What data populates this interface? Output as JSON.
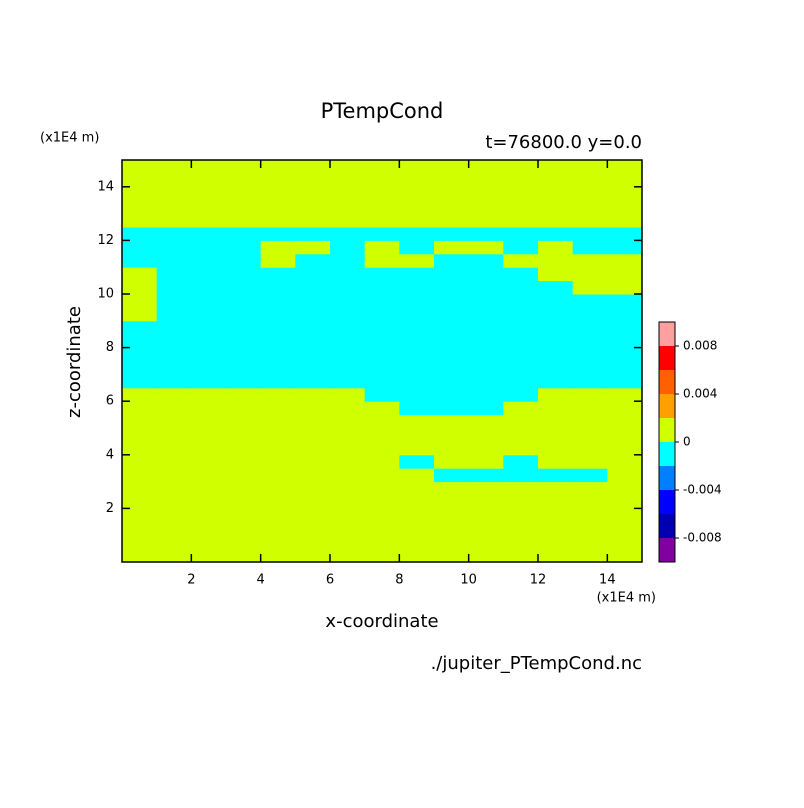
{
  "chart_data": {
    "type": "heatmap",
    "title": "PTempCond",
    "subtitle": "t=76800.0 y=0.0",
    "xlabel": "x-coordinate",
    "ylabel": "z-coordinate",
    "x_unit": "(x1E4 m)",
    "y_unit": "(x1E4 m)",
    "source": "./jupiter_PTempCond.nc",
    "xlim": [
      0,
      15
    ],
    "ylim": [
      0,
      15
    ],
    "xticks": [
      2,
      4,
      6,
      8,
      10,
      12,
      14
    ],
    "yticks": [
      2,
      4,
      6,
      8,
      10,
      12,
      14
    ],
    "x": [
      0.5,
      1.5,
      2.5,
      3.5,
      4.5,
      5.5,
      6.5,
      7.5,
      8.5,
      9.5,
      10.5,
      11.5,
      12.5,
      13.5,
      14.5
    ],
    "y": [
      0.25,
      0.75,
      1.25,
      1.75,
      2.25,
      2.75,
      3.25,
      3.75,
      4.25,
      4.75,
      5.25,
      5.75,
      6.25,
      6.75,
      7.25,
      7.75,
      8.25,
      8.75,
      9.25,
      9.75,
      10.25,
      10.75,
      11.25,
      11.75,
      12.25,
      12.75,
      13.25,
      13.75,
      14.25,
      14.75
    ],
    "z": [
      [
        0.001,
        0.001,
        0.001,
        0.001,
        0.001,
        0.001,
        0.001,
        0.001,
        0.001,
        0.001,
        0.001,
        0.001,
        0.001,
        0.001,
        0.001
      ],
      [
        0.001,
        0.001,
        0.001,
        0.001,
        0.001,
        0.001,
        0.001,
        0.001,
        0.001,
        0.001,
        0.001,
        0.001,
        0.001,
        0.001,
        0.001
      ],
      [
        0.001,
        0.001,
        0.001,
        0.001,
        0.001,
        0.001,
        0.001,
        0.001,
        0.001,
        0.001,
        0.001,
        0.001,
        0.001,
        0.001,
        0.001
      ],
      [
        0.001,
        0.001,
        0.001,
        0.001,
        0.001,
        0.001,
        0.001,
        0.001,
        0.001,
        0.001,
        0.001,
        0.001,
        0.001,
        0.001,
        0.001
      ],
      [
        0.001,
        0.001,
        0.001,
        0.001,
        0.001,
        0.001,
        0.001,
        0.001,
        0.001,
        0.001,
        0.001,
        0.001,
        0.001,
        0.001,
        0.001
      ],
      [
        0.001,
        0.001,
        0.001,
        0.001,
        0.001,
        0.001,
        0.001,
        0.001,
        0.001,
        0.001,
        0.001,
        0.001,
        0.001,
        0.001,
        0.001
      ],
      [
        0.001,
        0.001,
        0.001,
        0.001,
        0.001,
        0.001,
        0.001,
        0.001,
        0.001,
        -0.001,
        -0.001,
        -0.001,
        -0.001,
        -0.001,
        0.001
      ],
      [
        0.001,
        0.001,
        0.001,
        0.001,
        0.001,
        0.001,
        0.001,
        0.001,
        -0.001,
        0.001,
        0.001,
        -0.001,
        0.001,
        0.001,
        0.001
      ],
      [
        0.001,
        0.001,
        0.001,
        0.001,
        0.001,
        0.001,
        0.001,
        0.001,
        0.001,
        0.001,
        0.001,
        0.001,
        0.001,
        0.001,
        0.001
      ],
      [
        0.001,
        0.001,
        0.001,
        0.001,
        0.001,
        0.001,
        0.001,
        0.001,
        0.001,
        0.001,
        0.001,
        0.001,
        0.001,
        0.001,
        0.001
      ],
      [
        0.001,
        0.001,
        0.001,
        0.001,
        0.001,
        0.001,
        0.001,
        0.001,
        0.001,
        0.001,
        0.001,
        0.001,
        0.001,
        0.001,
        0.001
      ],
      [
        0.001,
        0.001,
        0.001,
        0.001,
        0.001,
        0.001,
        0.001,
        0.001,
        -0.001,
        -0.001,
        -0.001,
        0.001,
        0.001,
        0.001,
        0.001
      ],
      [
        0.001,
        0.001,
        0.001,
        0.001,
        0.001,
        0.001,
        0.001,
        -0.001,
        -0.001,
        -0.001,
        -0.001,
        -0.001,
        0.001,
        0.001,
        0.001
      ],
      [
        -0.001,
        -0.001,
        -0.001,
        -0.001,
        -0.001,
        -0.001,
        -0.001,
        -0.001,
        -0.001,
        -0.001,
        -0.001,
        -0.001,
        -0.001,
        -0.001,
        -0.001
      ],
      [
        -0.001,
        -0.001,
        -0.001,
        -0.001,
        -0.001,
        -0.001,
        -0.001,
        -0.001,
        -0.001,
        -0.001,
        -0.001,
        -0.001,
        -0.001,
        -0.001,
        -0.001
      ],
      [
        -0.001,
        -0.001,
        -0.001,
        -0.001,
        -0.001,
        -0.001,
        -0.001,
        -0.001,
        -0.001,
        -0.001,
        -0.001,
        -0.001,
        -0.001,
        -0.001,
        -0.001
      ],
      [
        -0.001,
        -0.001,
        -0.001,
        -0.001,
        -0.001,
        -0.001,
        -0.001,
        -0.001,
        -0.001,
        -0.001,
        -0.001,
        -0.001,
        -0.001,
        -0.001,
        -0.001
      ],
      [
        -0.001,
        -0.001,
        -0.001,
        -0.001,
        -0.001,
        -0.001,
        -0.001,
        -0.001,
        -0.001,
        -0.001,
        -0.001,
        -0.001,
        -0.001,
        -0.001,
        -0.001
      ],
      [
        0.001,
        -0.001,
        -0.001,
        -0.001,
        -0.001,
        -0.001,
        -0.001,
        -0.001,
        -0.001,
        -0.001,
        -0.001,
        -0.001,
        -0.001,
        -0.001,
        -0.001
      ],
      [
        0.001,
        -0.001,
        -0.001,
        -0.001,
        -0.001,
        -0.001,
        -0.001,
        -0.001,
        -0.001,
        -0.001,
        -0.001,
        -0.001,
        -0.001,
        -0.001,
        -0.001
      ],
      [
        0.001,
        -0.001,
        -0.001,
        -0.001,
        -0.001,
        -0.001,
        -0.001,
        -0.001,
        -0.001,
        -0.001,
        -0.001,
        -0.001,
        -0.001,
        0.001,
        0.001
      ],
      [
        0.001,
        -0.001,
        -0.001,
        -0.001,
        -0.001,
        -0.001,
        -0.001,
        -0.001,
        -0.001,
        -0.001,
        -0.001,
        -0.001,
        0.001,
        0.001,
        0.001
      ],
      [
        -0.001,
        -0.001,
        -0.001,
        -0.001,
        0.001,
        -0.001,
        -0.001,
        0.001,
        0.001,
        -0.001,
        -0.001,
        0.001,
        0.001,
        0.001,
        0.001
      ],
      [
        -0.001,
        -0.001,
        -0.001,
        -0.001,
        0.001,
        0.001,
        -0.001,
        0.001,
        -0.001,
        0.001,
        0.001,
        -0.001,
        0.001,
        -0.001,
        -0.001
      ],
      [
        -0.001,
        -0.001,
        -0.001,
        -0.001,
        -0.001,
        -0.001,
        -0.001,
        -0.001,
        -0.001,
        -0.001,
        -0.001,
        -0.001,
        -0.001,
        -0.001,
        -0.001
      ],
      [
        0.001,
        0.001,
        0.001,
        0.001,
        0.001,
        0.001,
        0.001,
        0.001,
        0.001,
        0.001,
        0.001,
        0.001,
        0.001,
        0.001,
        0.001
      ],
      [
        0.001,
        0.001,
        0.001,
        0.001,
        0.001,
        0.001,
        0.001,
        0.001,
        0.001,
        0.001,
        0.001,
        0.001,
        0.001,
        0.001,
        0.001
      ],
      [
        0.001,
        0.001,
        0.001,
        0.001,
        0.001,
        0.001,
        0.001,
        0.001,
        0.001,
        0.001,
        0.001,
        0.001,
        0.001,
        0.001,
        0.001
      ],
      [
        0.001,
        0.001,
        0.001,
        0.001,
        0.001,
        0.001,
        0.001,
        0.001,
        0.001,
        0.001,
        0.001,
        0.001,
        0.001,
        0.001,
        0.001
      ],
      [
        0.001,
        0.001,
        0.001,
        0.001,
        0.001,
        0.001,
        0.001,
        0.001,
        0.001,
        0.001,
        0.001,
        0.001,
        0.001,
        0.001,
        0.001
      ]
    ],
    "levels": [
      -0.01,
      -0.008,
      -0.006,
      -0.004,
      -0.002,
      0,
      0.002,
      0.004,
      0.006,
      0.008,
      0.01
    ],
    "colors": [
      "#8000a0",
      "#0000b0",
      "#0000ff",
      "#0080ff",
      "#00ffff",
      "#d0ff00",
      "#ffa000",
      "#ff6000",
      "#ff0000",
      "#ffa0a0"
    ],
    "colorbar_ticks": [
      0.008,
      0.004,
      0,
      -0.004,
      -0.008
    ]
  }
}
